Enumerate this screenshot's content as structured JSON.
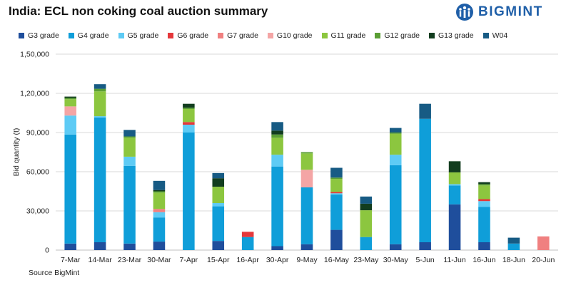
{
  "title": "India: ECL non coking coal auction summary",
  "logo": {
    "text": "BIGMINT"
  },
  "source": "Source BigMint",
  "chart_data": {
    "type": "bar",
    "stacked": true,
    "title": "India: ECL non coking coal auction summary",
    "xlabel": "",
    "ylabel": "Bid quantity (t)",
    "ylim": [
      0,
      150000
    ],
    "yticks": [
      0,
      30000,
      60000,
      90000,
      120000,
      150000
    ],
    "ytick_labels": [
      "0",
      "30,000",
      "60,000",
      "90,000",
      "1,20,000",
      "1,50,000"
    ],
    "grid": true,
    "legend_position": "top",
    "categories": [
      "7-Mar",
      "14-Mar",
      "23-Mar",
      "30-Mar",
      "7-Apr",
      "15-Apr",
      "16-Apr",
      "30-Apr",
      "9-May",
      "16-May",
      "23-May",
      "30-May",
      "5-Jun",
      "11-Jun",
      "16-Jun",
      "18-Jun",
      "20-Jun"
    ],
    "series": [
      {
        "name": "G3 grade",
        "color": "#1f4e9c",
        "values": [
          5000,
          6000,
          5000,
          6500,
          0,
          7000,
          0,
          3000,
          4500,
          15500,
          0,
          4500,
          6000,
          35000,
          6000,
          0,
          0
        ]
      },
      {
        "name": "G4 grade",
        "color": "#0f9ed9",
        "values": [
          83500,
          95500,
          59500,
          18500,
          90000,
          26500,
          10000,
          61000,
          43500,
          27000,
          10000,
          60500,
          94500,
          14500,
          27000,
          5000,
          0
        ]
      },
      {
        "name": "G5 grade",
        "color": "#5ecbf5",
        "values": [
          14500,
          1000,
          7000,
          4000,
          6000,
          2500,
          0,
          9000,
          0,
          1000,
          0,
          8000,
          0,
          1000,
          4500,
          0,
          0
        ]
      },
      {
        "name": "G6 grade",
        "color": "#e5383b",
        "values": [
          0,
          0,
          0,
          0,
          2000,
          0,
          4000,
          0,
          0,
          1000,
          0,
          0,
          0,
          0,
          1500,
          0,
          0
        ]
      },
      {
        "name": "G7 grade",
        "color": "#f08080",
        "values": [
          0,
          0,
          0,
          2500,
          0,
          0,
          0,
          0,
          0,
          0,
          0,
          0,
          0,
          0,
          0,
          0,
          10500
        ]
      },
      {
        "name": "G10 grade",
        "color": "#f4a5a5",
        "values": [
          7000,
          0,
          0,
          0,
          0,
          0,
          0,
          0,
          13500,
          0,
          0,
          0,
          0,
          0,
          0,
          0,
          0
        ]
      },
      {
        "name": "G11 grade",
        "color": "#8cc63f",
        "values": [
          5500,
          19000,
          14500,
          12500,
          10000,
          12500,
          0,
          13000,
          12500,
          10000,
          20500,
          16000,
          0,
          9000,
          10500,
          0,
          0
        ]
      },
      {
        "name": "G12 grade",
        "color": "#5a9e34",
        "values": [
          1000,
          2000,
          1000,
          1000,
          1000,
          0,
          0,
          2500,
          1000,
          1000,
          0,
          1000,
          0,
          0,
          1000,
          0,
          0
        ]
      },
      {
        "name": "G13 grade",
        "color": "#123d1f",
        "values": [
          1000,
          0,
          0,
          1000,
          3000,
          6500,
          0,
          3000,
          0,
          0,
          5000,
          0,
          0,
          8500,
          1500,
          0,
          0
        ]
      },
      {
        "name": "W04",
        "color": "#175b84",
        "values": [
          0,
          3500,
          5000,
          7000,
          0,
          4000,
          0,
          6500,
          0,
          7500,
          5500,
          3500,
          11500,
          0,
          0,
          4500,
          0
        ]
      }
    ]
  }
}
